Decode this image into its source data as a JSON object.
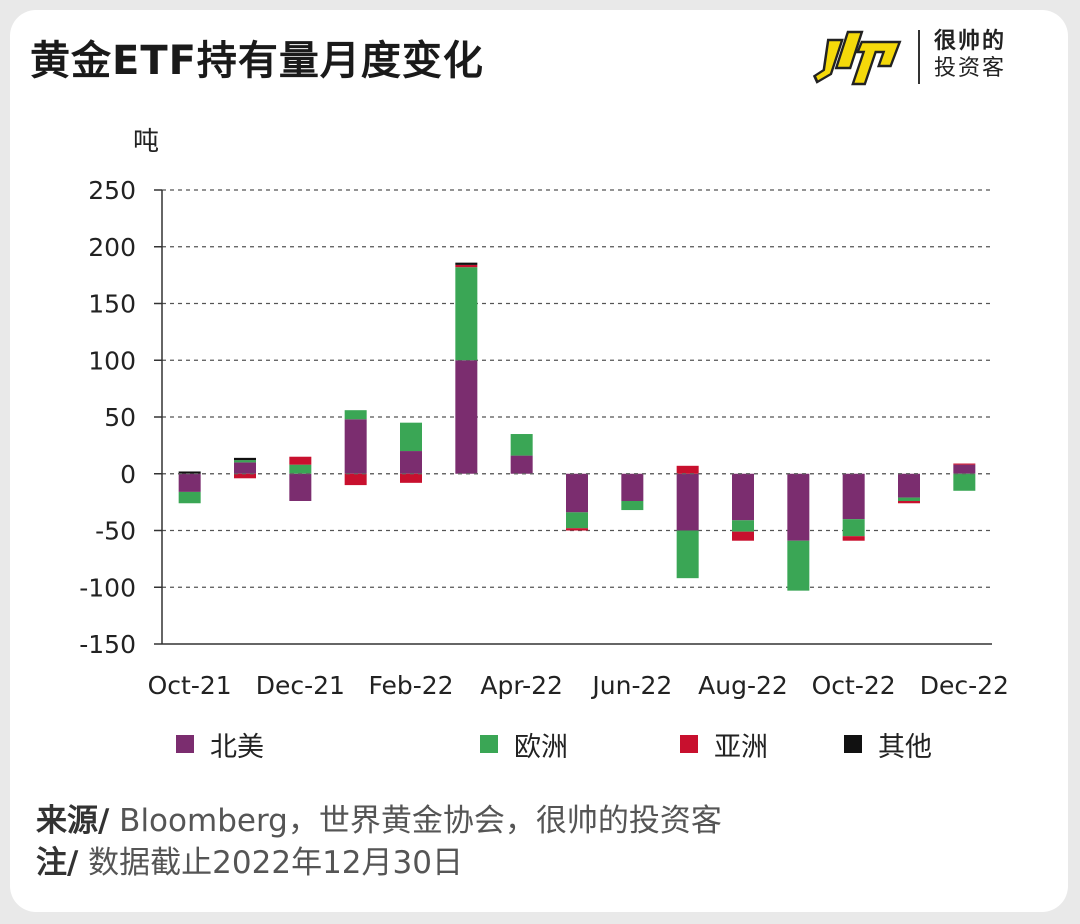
{
  "header": {
    "title": "黄金ETF持有量月度变化"
  },
  "brand": {
    "line1": "很帅的",
    "line2": "投资客",
    "mark_icon": "shuai-logo-icon"
  },
  "chart_data": {
    "type": "bar",
    "stacked": true,
    "title": "黄金ETF持有量月度变化",
    "unit_label": "吨",
    "xlabel": "",
    "ylabel": "吨",
    "ylim": [
      -150,
      250
    ],
    "yticks": [
      250,
      200,
      150,
      100,
      50,
      0,
      -50,
      -100,
      -150
    ],
    "grid": true,
    "legend_position": "bottom",
    "categories": [
      "Oct-21",
      "Nov-21",
      "Dec-21",
      "Jan-22",
      "Feb-22",
      "Mar-22",
      "Apr-22",
      "May-22",
      "Jun-22",
      "Jul-22",
      "Aug-22",
      "Sep-22",
      "Oct-22",
      "Nov-22",
      "Dec-22"
    ],
    "x_tick_labels": [
      "Oct-21",
      "",
      "Dec-21",
      "",
      "Feb-22",
      "",
      "Apr-22",
      "",
      "Jun-22",
      "",
      "Aug-22",
      "",
      "Oct-22",
      "",
      "Dec-22"
    ],
    "series": [
      {
        "name": "北美",
        "color": "#7b2d6f",
        "values": [
          -16,
          10,
          -24,
          48,
          20,
          100,
          16,
          -34,
          -24,
          -50,
          -41,
          -59,
          -40,
          -21,
          8
        ]
      },
      {
        "name": "欧洲",
        "color": "#3aa655",
        "values": [
          -10,
          2,
          8,
          8,
          25,
          82,
          19,
          -14,
          -8,
          -42,
          -10,
          -44,
          -15,
          -3,
          -15
        ]
      },
      {
        "name": "亚洲",
        "color": "#c8102e",
        "values": [
          0,
          -4,
          7,
          -10,
          -8,
          2,
          0,
          -2,
          0,
          7,
          -8,
          0,
          -4,
          -2,
          1
        ]
      },
      {
        "name": "其他",
        "color": "#111111",
        "values": [
          2,
          2,
          0,
          0,
          0,
          2,
          0,
          0,
          0,
          0,
          0,
          0,
          0,
          0,
          0
        ]
      }
    ]
  },
  "footer": {
    "source_label": "来源/",
    "source_text": " Bloomberg，世界黄金协会，很帅的投资客",
    "note_label": "注/",
    "note_text": " 数据截止2022年12月30日"
  }
}
